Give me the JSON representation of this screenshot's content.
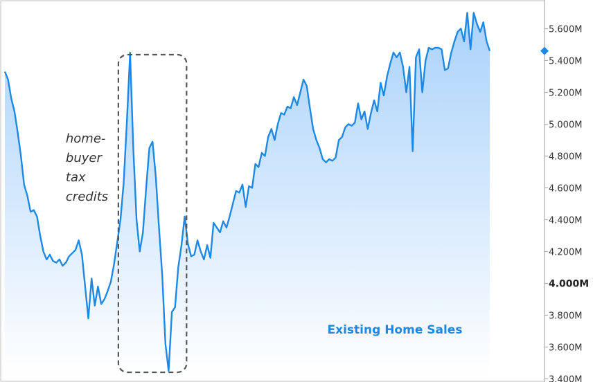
{
  "chart_data": {
    "type": "area",
    "title": "",
    "xlabel": "",
    "ylabel": "",
    "series_label": "Existing Home Sales",
    "y_unit_suffix": "M",
    "ylim": [
      3.38,
      5.78
    ],
    "y_ticks": [
      {
        "value": 5.6,
        "label": "5.600M"
      },
      {
        "value": 5.4,
        "label": "5.400M"
      },
      {
        "value": 5.2,
        "label": "5.200M"
      },
      {
        "value": 5.0,
        "label": "5.000M"
      },
      {
        "value": 4.8,
        "label": "4.800M"
      },
      {
        "value": 4.6,
        "label": "4.600M"
      },
      {
        "value": 4.4,
        "label": "4.400M"
      },
      {
        "value": 4.2,
        "label": "4.200M"
      },
      {
        "value": 4.0,
        "label": "4.000M",
        "emphasis": true
      },
      {
        "value": 3.8,
        "label": "3.800M"
      },
      {
        "value": 3.6,
        "label": "3.600M"
      },
      {
        "value": 3.4,
        "label": "3.400M"
      }
    ],
    "grid": false,
    "legend": "none",
    "series": [
      {
        "color": "#1e88e5",
        "fill_top": "#a9d2fb",
        "fill_bottom": "#ffffff",
        "values": [
          5.33,
          5.28,
          5.16,
          5.08,
          4.95,
          4.8,
          4.62,
          4.55,
          4.45,
          4.46,
          4.42,
          4.3,
          4.2,
          4.15,
          4.18,
          4.14,
          4.13,
          4.15,
          4.11,
          4.13,
          4.17,
          4.19,
          4.21,
          4.27,
          4.18,
          3.98,
          3.78,
          4.03,
          3.86,
          3.98,
          3.87,
          3.9,
          3.95,
          4.01,
          4.12,
          4.26,
          4.4,
          4.63,
          5.02,
          5.45,
          4.85,
          4.4,
          4.2,
          4.32,
          4.6,
          4.85,
          4.89,
          4.67,
          4.35,
          4.05,
          3.62,
          3.45,
          3.82,
          3.85,
          4.1,
          4.24,
          4.42,
          4.25,
          4.17,
          4.18,
          4.27,
          4.2,
          4.15,
          4.24,
          4.16,
          4.38,
          4.35,
          4.32,
          4.39,
          4.35,
          4.42,
          4.5,
          4.58,
          4.57,
          4.62,
          4.48,
          4.61,
          4.6,
          4.75,
          4.73,
          4.82,
          4.8,
          4.92,
          4.97,
          4.9,
          5.0,
          5.07,
          5.06,
          5.11,
          5.1,
          5.17,
          5.12,
          5.2,
          5.28,
          5.24,
          5.1,
          4.97,
          4.9,
          4.85,
          4.78,
          4.76,
          4.78,
          4.77,
          4.79,
          4.9,
          4.92,
          4.98,
          5.0,
          4.99,
          5.01,
          5.13,
          5.03,
          5.08,
          4.97,
          5.07,
          5.15,
          5.08,
          5.26,
          5.18,
          5.3,
          5.38,
          5.45,
          5.42,
          5.45,
          5.36,
          5.2,
          5.36,
          4.83,
          5.42,
          5.47,
          5.2,
          5.4,
          5.48,
          5.47,
          5.48,
          5.48,
          5.47,
          5.34,
          5.35,
          5.45,
          5.52,
          5.58,
          5.6,
          5.52,
          5.7,
          5.47,
          5.7,
          5.63,
          5.58,
          5.64,
          5.52,
          5.46
        ]
      }
    ],
    "annotations": [
      {
        "text_lines": [
          "home-",
          "buyer",
          "tax",
          "credits"
        ],
        "box_from_index": 36,
        "box_to_index": 54
      }
    ]
  }
}
